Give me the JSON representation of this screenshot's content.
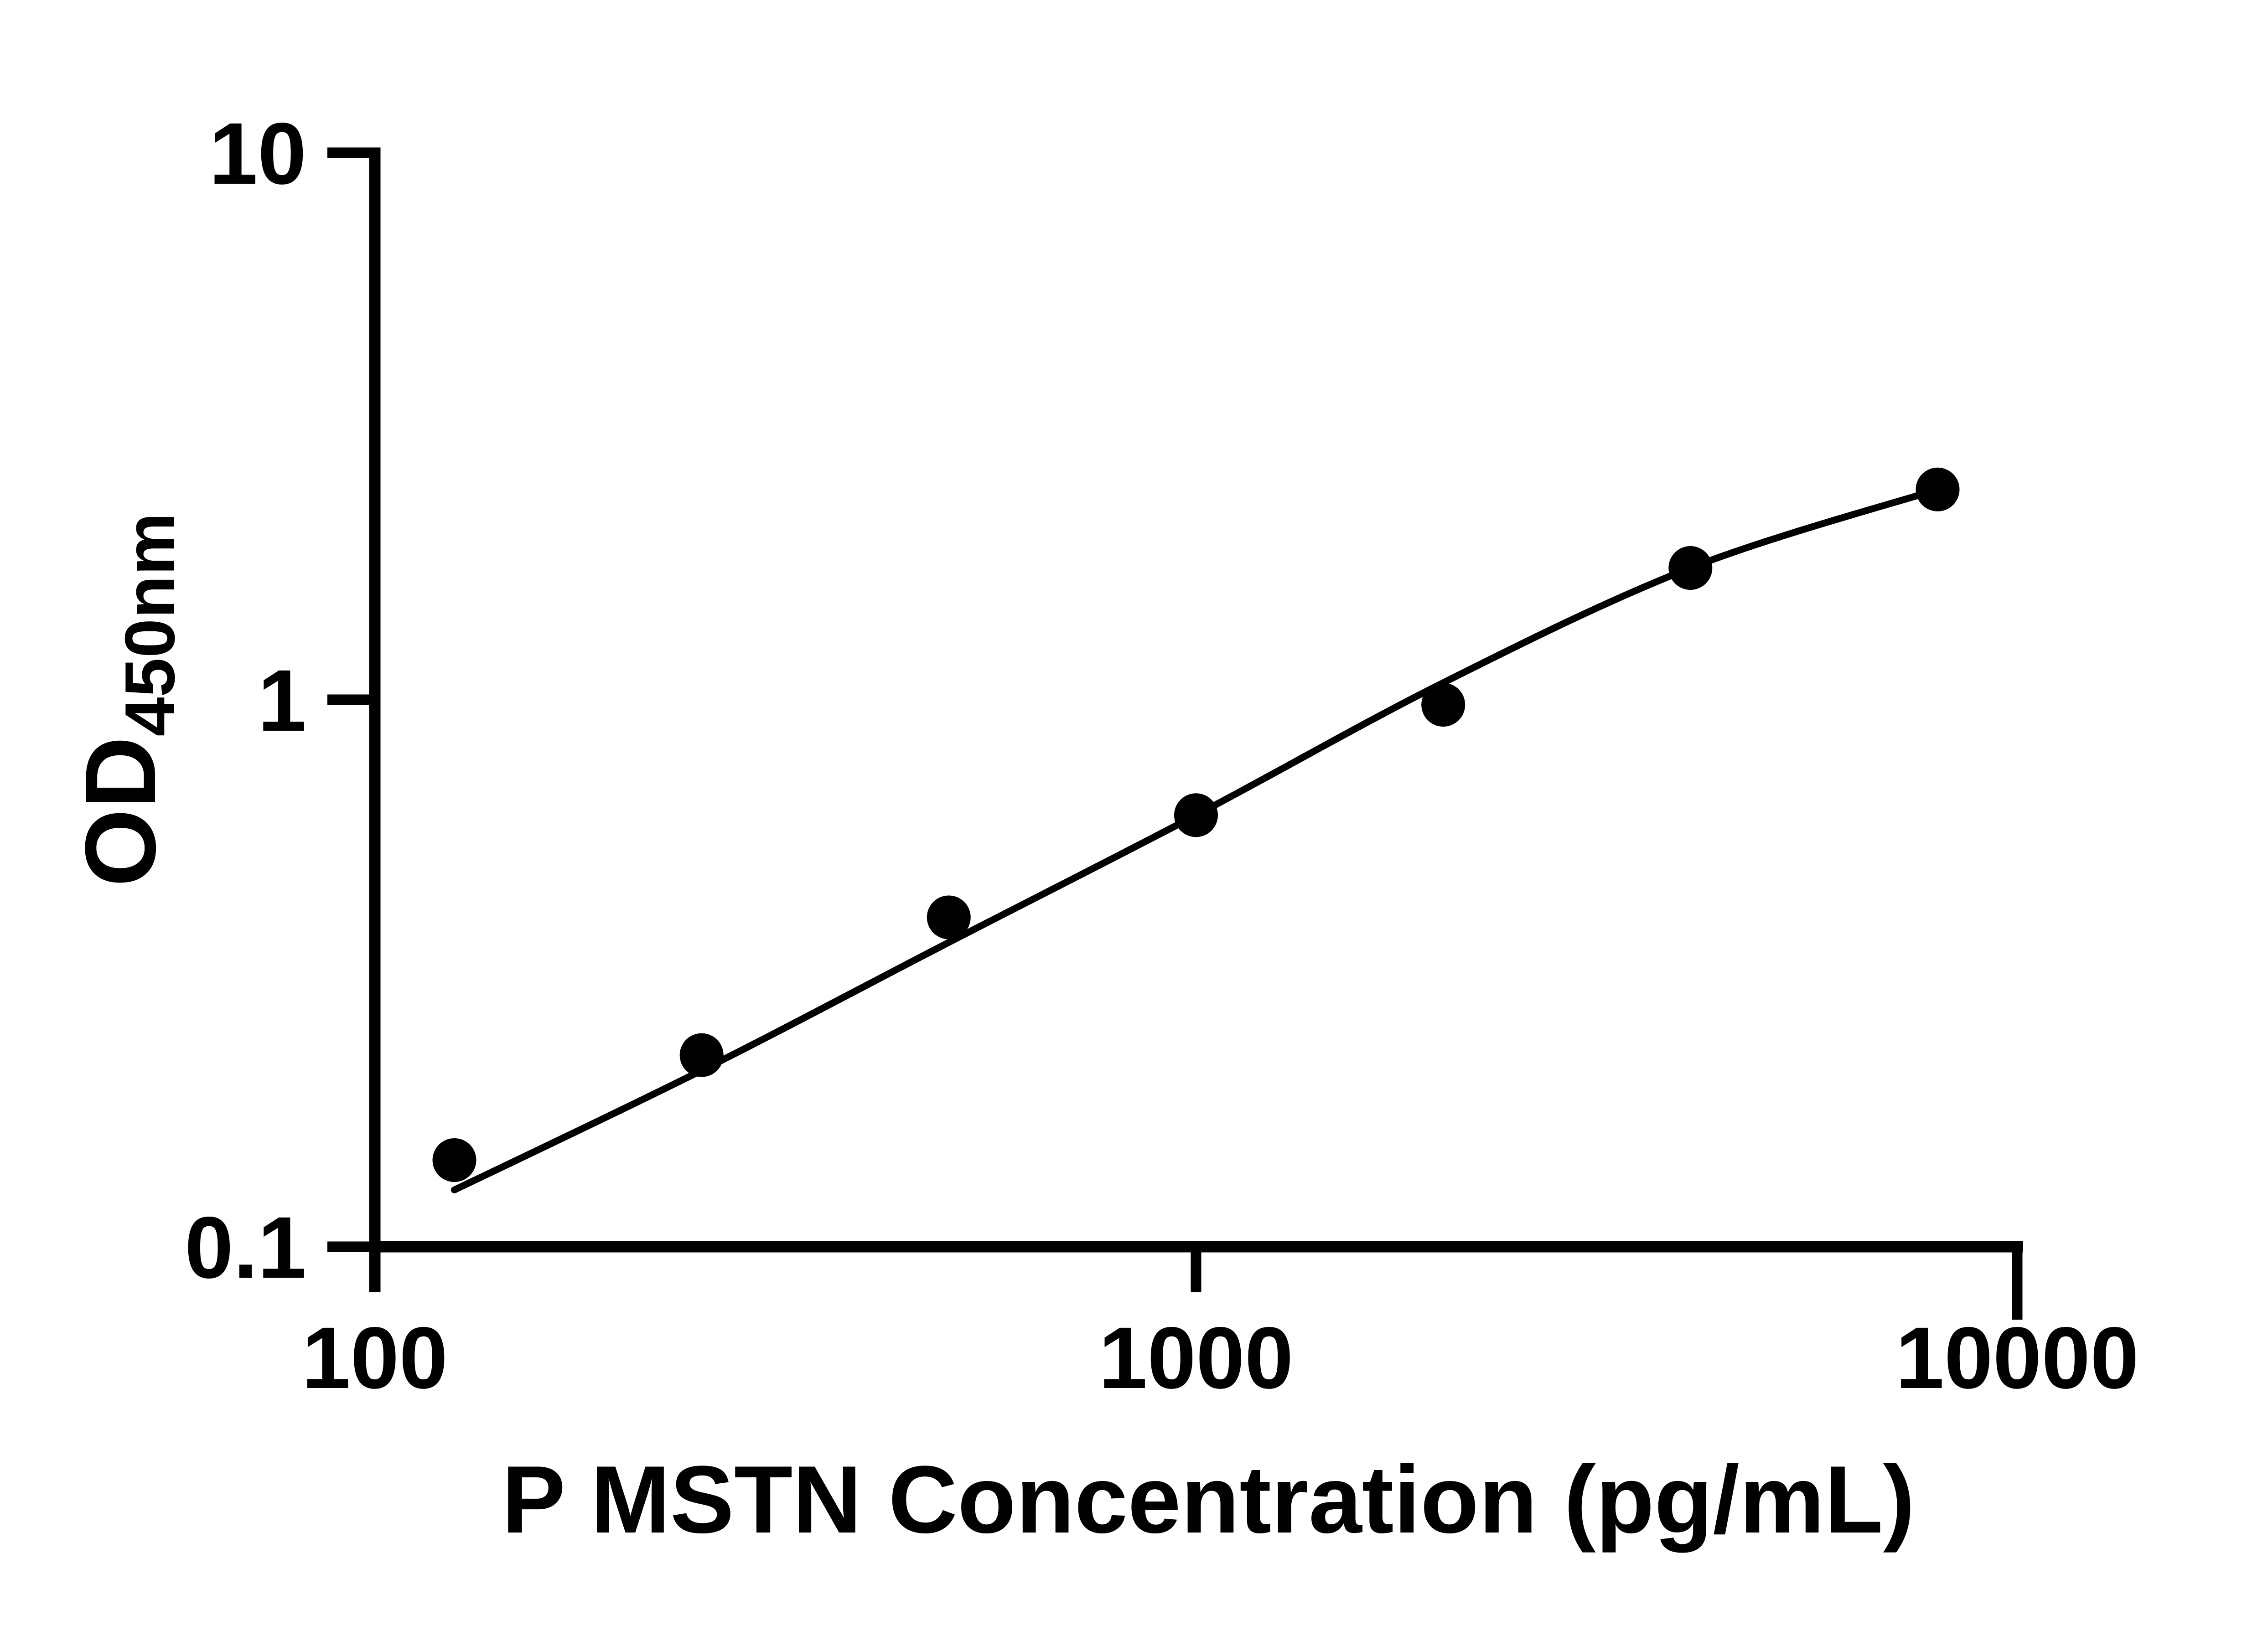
{
  "figure": {
    "background": "#ffffff",
    "ink": "#000000"
  },
  "chart_data": {
    "type": "scatter",
    "title": "",
    "xlabel": "P MSTN Concentration (pg/mL)",
    "ylabel_main": "OD",
    "ylabel_sub": "450nm",
    "x_scale": "log10",
    "y_scale": "log10",
    "xlim": [
      100,
      10000
    ],
    "ylim": [
      0.1,
      10
    ],
    "grid": false,
    "legend": false,
    "x_ticks": [
      {
        "value": 100,
        "label": "100"
      },
      {
        "value": 1000,
        "label": "1000"
      },
      {
        "value": 10000,
        "label": "10000"
      }
    ],
    "y_ticks": [
      {
        "value": 0.1,
        "label": "0.1"
      },
      {
        "value": 1,
        "label": "1"
      },
      {
        "value": 10,
        "label": "10"
      }
    ],
    "series": [
      {
        "name": "standard-points",
        "kind": "scatter",
        "marker": "filled-circle",
        "color": "#000000",
        "points": [
          {
            "x": 125,
            "y": 0.144
          },
          {
            "x": 250,
            "y": 0.224
          },
          {
            "x": 500,
            "y": 0.4
          },
          {
            "x": 1000,
            "y": 0.615
          },
          {
            "x": 2000,
            "y": 0.979
          },
          {
            "x": 4000,
            "y": 1.741
          },
          {
            "x": 8000,
            "y": 2.423
          }
        ]
      },
      {
        "name": "fitted-curve",
        "kind": "line",
        "color": "#000000",
        "points": [
          {
            "x": 125,
            "y": 0.127
          },
          {
            "x": 250,
            "y": 0.21
          },
          {
            "x": 500,
            "y": 0.36
          },
          {
            "x": 1000,
            "y": 0.615
          },
          {
            "x": 2000,
            "y": 1.074
          },
          {
            "x": 4000,
            "y": 1.741
          },
          {
            "x": 8000,
            "y": 2.423
          }
        ]
      }
    ]
  }
}
